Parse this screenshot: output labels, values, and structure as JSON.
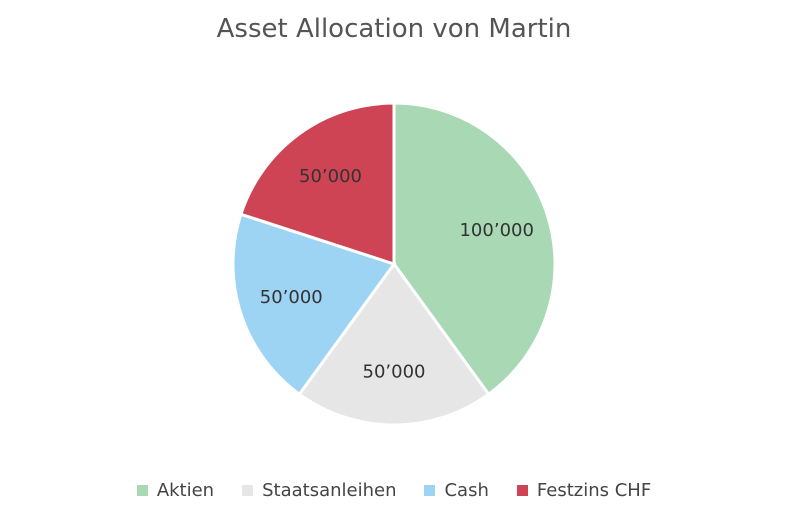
{
  "chart_data": {
    "type": "pie",
    "title": "Asset Allocation von Martin",
    "categories": [
      "Aktien",
      "Staatsanleihen",
      "Cash",
      "Festzins CHF"
    ],
    "values": [
      100000,
      50000,
      50000,
      50000
    ],
    "labels": [
      "100’000",
      "50’000",
      "50’000",
      "50’000"
    ],
    "colors": [
      "#a8d8b4",
      "#e6e6e6",
      "#9dd3f3",
      "#cf4454"
    ],
    "legend": "bottom"
  }
}
